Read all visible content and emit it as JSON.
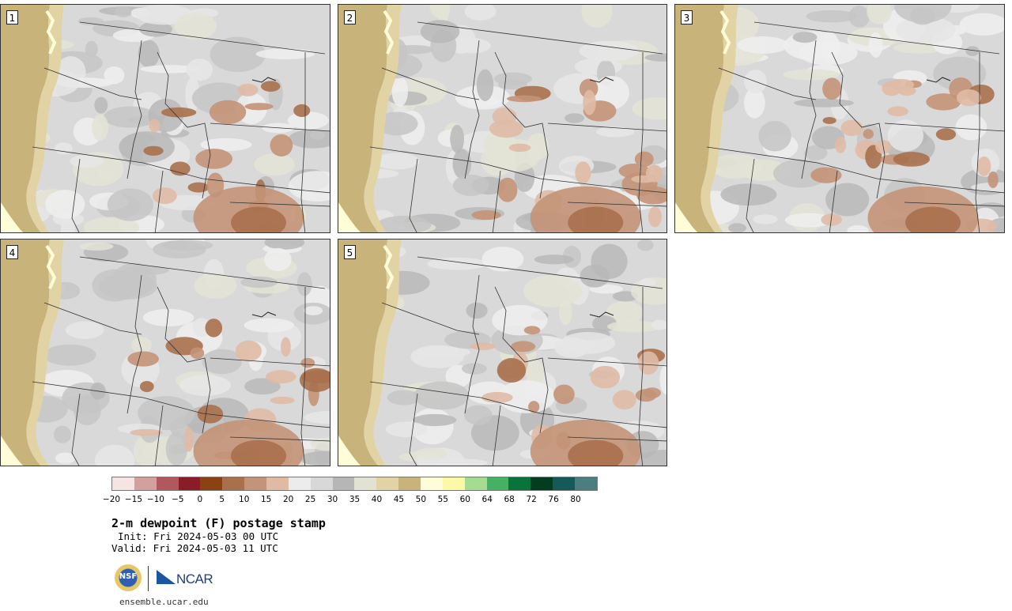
{
  "panels": [
    {
      "label": "1",
      "warm_spots": "few"
    },
    {
      "label": "2",
      "warm_spots": "some"
    },
    {
      "label": "3",
      "warm_spots": "more"
    },
    {
      "label": "4",
      "warm_spots": "some"
    },
    {
      "label": "5",
      "warm_spots": "few"
    }
  ],
  "colorbar": {
    "colors": [
      "#f4e4e4",
      "#d3a0a0",
      "#b0585e",
      "#8a1c26",
      "#8b4213",
      "#a8704d",
      "#c39477",
      "#dfbba6",
      "#ececec",
      "#d8d8d8",
      "#b6b6b6",
      "#e2e2d2",
      "#e2d3a4",
      "#c8b47a",
      "#fffcd8",
      "#fbf8a8",
      "#a5dc8f",
      "#46b163",
      "#08733a",
      "#033c1f",
      "#155958",
      "#4a7e7f"
    ],
    "ticks": [
      "−20",
      "−15",
      "−10",
      "−5",
      "0",
      "5",
      "10",
      "15",
      "20",
      "25",
      "30",
      "35",
      "40",
      "45",
      "50",
      "55",
      "60",
      "64",
      "68",
      "72",
      "76",
      "80"
    ]
  },
  "title": "2-m dewpoint (F) postage stamp",
  "init": "Init: Fri 2024-05-03 00 UTC",
  "valid": "Valid: Fri 2024-05-03 11 UTC",
  "logos": {
    "nsf": "NSF",
    "ncar": "NCAR"
  },
  "url": "ensemble.ucar.edu"
}
